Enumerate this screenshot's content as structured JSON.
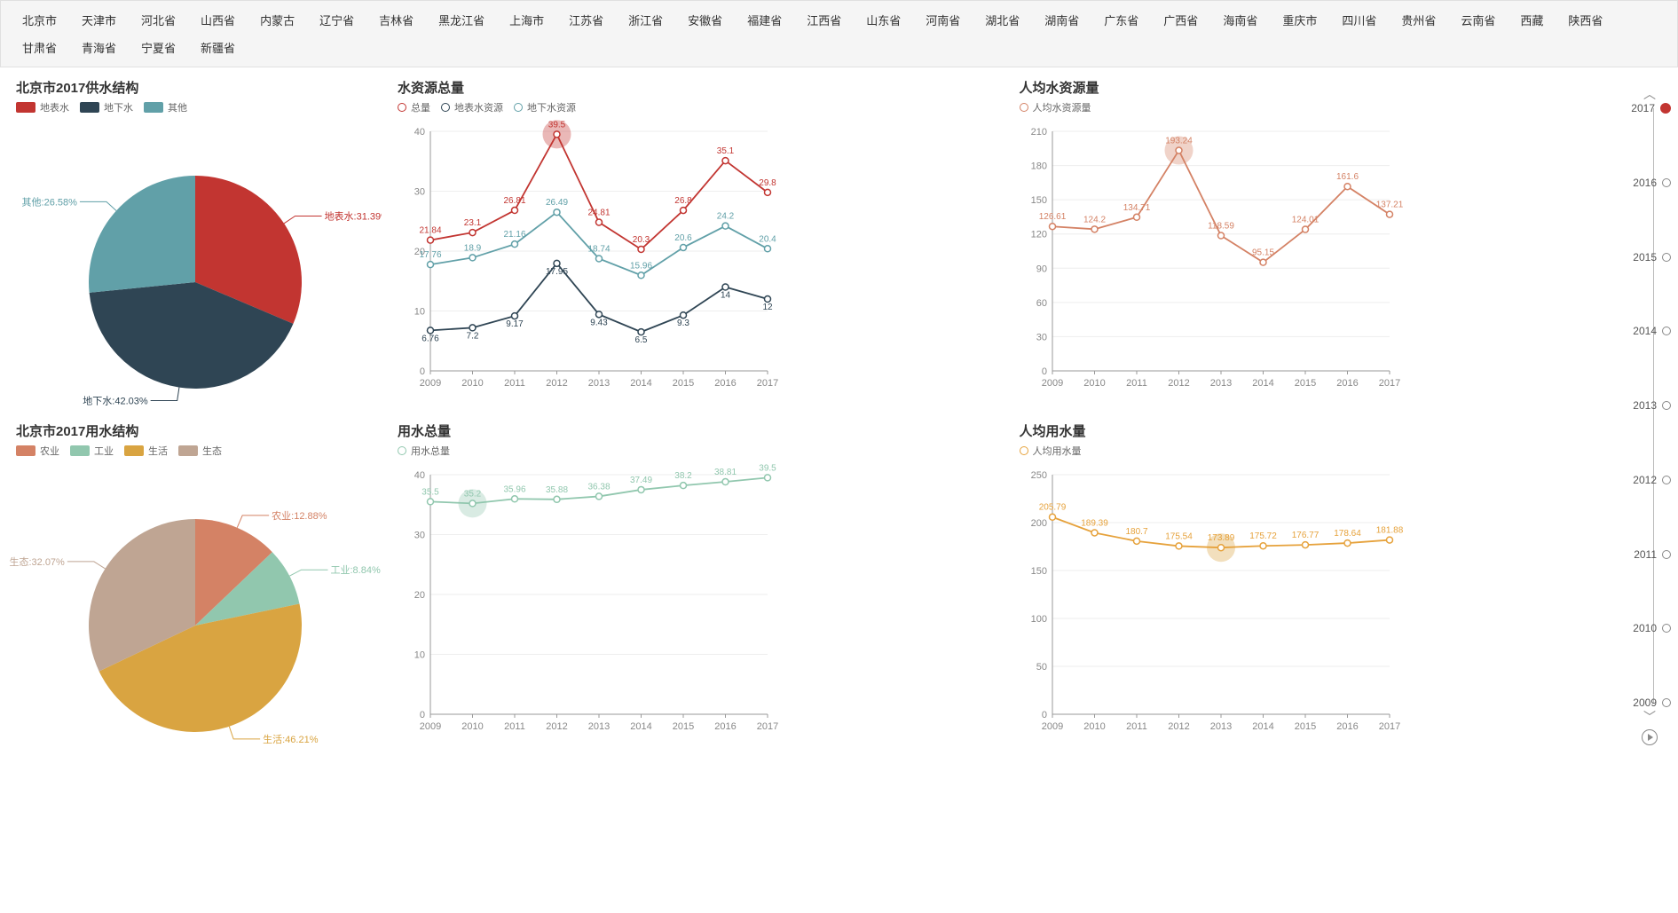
{
  "colors": {
    "red": "#c23531",
    "navy": "#2f4554",
    "teal": "#61a0a8",
    "salmon": "#d48265",
    "green": "#91c7ae",
    "gold": "#d9a441",
    "beige": "#bfa593",
    "orange": "#e6a23c",
    "grid": "#eeeeee",
    "axis": "#999999",
    "text": "#888888"
  },
  "tabs": [
    "北京市",
    "天津市",
    "河北省",
    "山西省",
    "内蒙古",
    "辽宁省",
    "吉林省",
    "黑龙江省",
    "上海市",
    "江苏省",
    "浙江省",
    "安徽省",
    "福建省",
    "江西省",
    "山东省",
    "河南省",
    "湖北省",
    "湖南省",
    "广东省",
    "广西省",
    "海南省",
    "重庆市",
    "四川省",
    "贵州省",
    "云南省",
    "西藏",
    "陕西省",
    "甘肃省",
    "青海省",
    "宁夏省",
    "新疆省"
  ],
  "timeline": {
    "years": [
      "2017",
      "2016",
      "2015",
      "2014",
      "2013",
      "2012",
      "2011",
      "2010",
      "2009"
    ],
    "active": "2017"
  },
  "pie1": {
    "title": "北京市2017供水结构",
    "legend": [
      {
        "key": "surface",
        "label": "地表水",
        "color": "#c23531"
      },
      {
        "key": "ground",
        "label": "地下水",
        "color": "#2f4554"
      },
      {
        "key": "other",
        "label": "其他",
        "color": "#61a0a8"
      }
    ],
    "slices": [
      {
        "label": "地表水",
        "pct": 31.39,
        "color": "#c23531",
        "lblColor": "#c23531"
      },
      {
        "label": "地下水",
        "pct": 42.03,
        "color": "#2f4554",
        "lblColor": "#2f4554"
      },
      {
        "label": "其他",
        "pct": 26.58,
        "color": "#61a0a8",
        "lblColor": "#61a0a8"
      }
    ]
  },
  "pie2": {
    "title": "北京市2017用水结构",
    "legend": [
      {
        "key": "agri",
        "label": "农业",
        "color": "#d48265"
      },
      {
        "key": "ind",
        "label": "工业",
        "color": "#91c7ae"
      },
      {
        "key": "life",
        "label": "生活",
        "color": "#d9a441"
      },
      {
        "key": "eco",
        "label": "生态",
        "color": "#bfa593"
      }
    ],
    "slices": [
      {
        "label": "农业",
        "pct": 12.88,
        "color": "#d48265",
        "lblColor": "#d48265"
      },
      {
        "label": "工业",
        "pct": 8.84,
        "color": "#91c7ae",
        "lblColor": "#91c7ae"
      },
      {
        "label": "生活",
        "pct": 46.21,
        "color": "#d9a441",
        "lblColor": "#d9a441"
      },
      {
        "label": "生态",
        "pct": 32.07,
        "color": "#bfa593",
        "lblColor": "#bfa593"
      }
    ]
  },
  "line1": {
    "title": "水资源总量",
    "x": [
      "2009",
      "2010",
      "2011",
      "2012",
      "2013",
      "2014",
      "2015",
      "2016",
      "2017"
    ],
    "ylim": [
      0,
      40
    ],
    "ystep": 10,
    "highlight": {
      "x": "2012",
      "color": "#c23531"
    },
    "series": [
      {
        "name": "总量",
        "color": "#c23531",
        "data": [
          21.84,
          23.1,
          26.81,
          39.5,
          24.81,
          20.3,
          26.8,
          35.1,
          29.8
        ]
      },
      {
        "name": "地表水资源",
        "color": "#2f4554",
        "data": [
          6.76,
          7.2,
          9.17,
          17.95,
          9.43,
          6.5,
          9.3,
          14,
          12
        ]
      },
      {
        "name": "地下水资源",
        "color": "#61a0a8",
        "data": [
          17.76,
          18.9,
          21.16,
          26.49,
          18.74,
          15.96,
          20.6,
          24.2,
          20.4
        ]
      }
    ]
  },
  "line2": {
    "title": "人均水资源量",
    "x": [
      "2009",
      "2010",
      "2011",
      "2012",
      "2013",
      "2014",
      "2015",
      "2016",
      "2017"
    ],
    "ylim": [
      0,
      210
    ],
    "ystep": 30,
    "highlight": {
      "x": "2012",
      "color": "#d48265"
    },
    "series": [
      {
        "name": "人均水资源量",
        "color": "#d48265",
        "data": [
          126.61,
          124.2,
          134.71,
          193.24,
          118.59,
          95.15,
          124.01,
          161.6,
          137.21
        ]
      }
    ]
  },
  "line3": {
    "title": "用水总量",
    "x": [
      "2009",
      "2010",
      "2011",
      "2012",
      "2013",
      "2014",
      "2015",
      "2016",
      "2017"
    ],
    "ylim": [
      0,
      40
    ],
    "ystep": 10,
    "highlight": {
      "x": "2010",
      "color": "#91c7ae"
    },
    "series": [
      {
        "name": "用水总量",
        "color": "#91c7ae",
        "data": [
          35.5,
          35.2,
          35.96,
          35.88,
          36.38,
          37.49,
          38.2,
          38.81,
          39.5
        ]
      }
    ]
  },
  "line4": {
    "title": "人均用水量",
    "x": [
      "2009",
      "2010",
      "2011",
      "2012",
      "2013",
      "2014",
      "2015",
      "2016",
      "2017"
    ],
    "ylim": [
      0,
      250
    ],
    "ystep": 50,
    "highlight": {
      "x": "2013",
      "color": "#d9a441"
    },
    "series": [
      {
        "name": "人均用水量",
        "color": "#e6a23c",
        "data": [
          205.79,
          189.39,
          180.7,
          175.54,
          173.89,
          175.72,
          176.77,
          178.64,
          181.88
        ]
      }
    ]
  }
}
